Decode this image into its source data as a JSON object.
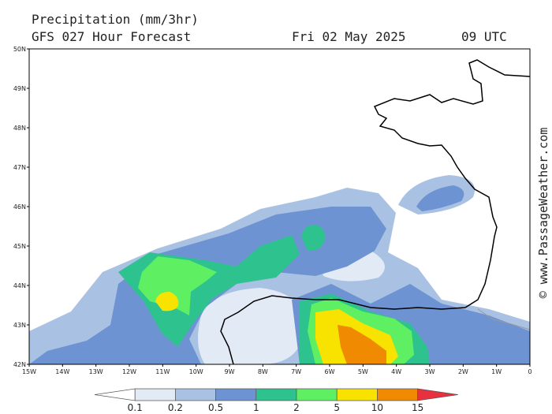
{
  "header": {
    "title": "Precipitation (mm/3hr)",
    "subtitle": "GFS 027 Hour Forecast",
    "date": "Fri 02 May 2025",
    "time": "09 UTC"
  },
  "axes": {
    "lat_labels": [
      "50N",
      "49N",
      "48N",
      "47N",
      "46N",
      "45N",
      "44N",
      "43N",
      "42N"
    ],
    "lon_labels": [
      "15W",
      "14W",
      "13W",
      "12W",
      "11W",
      "10W",
      "9W",
      "8W",
      "7W",
      "6W",
      "5W",
      "4W",
      "3W",
      "2W",
      "1W",
      "0"
    ]
  },
  "legend": {
    "colors": [
      "#ffffff",
      "#e2eaf5",
      "#a9c1e2",
      "#6e93d2",
      "#2ec28e",
      "#5fef63",
      "#f7e200",
      "#f08a00",
      "#e8303e"
    ],
    "labels": [
      "0.1",
      "0.2",
      "0.5",
      "1",
      "2",
      "5",
      "10",
      "15"
    ]
  },
  "watermark": "© www.PassageWeather.com"
}
